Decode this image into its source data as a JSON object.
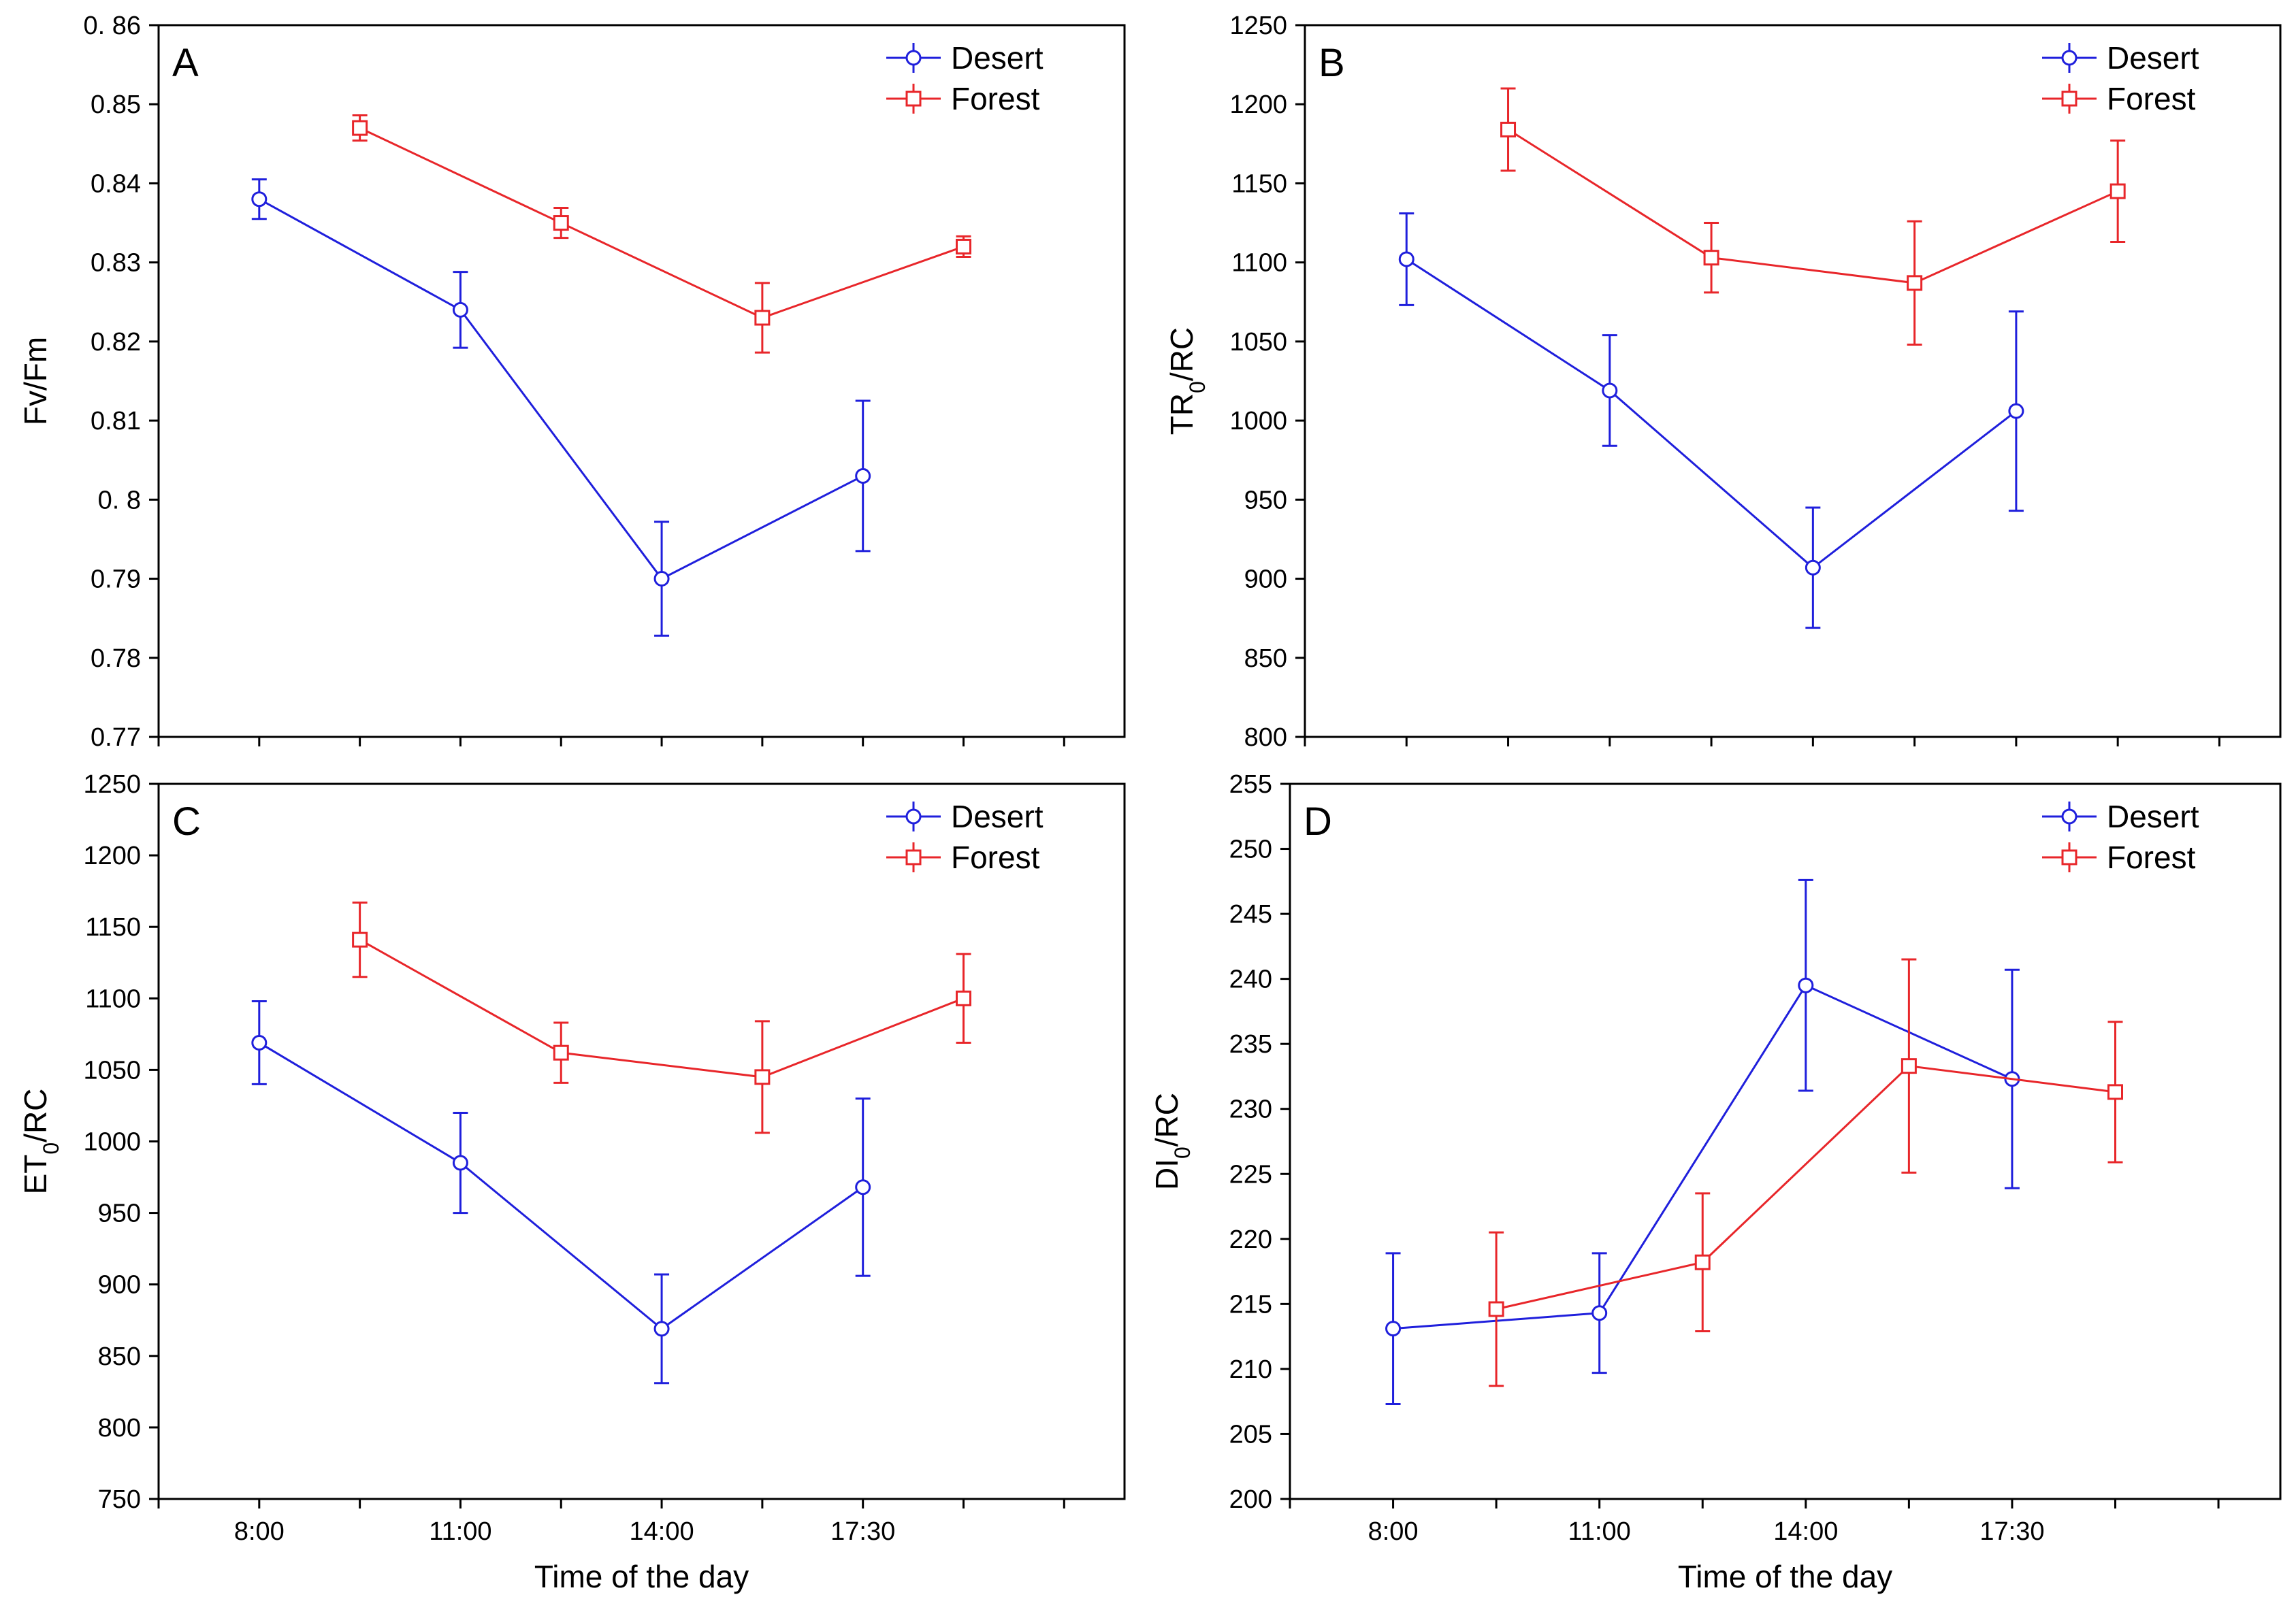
{
  "figure": {
    "colors": {
      "desert": "#1f1fdc",
      "forest": "#e8262a"
    }
  },
  "chart_data": [
    {
      "type": "line",
      "panel": "A",
      "ylabel": "Fv/Fm",
      "xlabel": "",
      "ylim": [
        0.77,
        0.86
      ],
      "yticks": [
        "0.77",
        "0.78",
        "0.79",
        "0. 8",
        "0.81",
        "0.82",
        "0.83",
        "0.84",
        "0.85",
        "0. 86"
      ],
      "xticks": [
        "",
        "",
        "",
        "",
        "",
        "",
        "",
        "",
        "",
        ""
      ],
      "legend": [
        "Desert",
        "Forest"
      ],
      "series": [
        {
          "name": "Desert",
          "x": [
            1,
            3,
            5,
            7
          ],
          "values": [
            0.838,
            0.824,
            0.79,
            0.803
          ],
          "err": [
            0.0025,
            0.0048,
            0.0072,
            0.0095
          ]
        },
        {
          "name": "Forest",
          "x": [
            2,
            4,
            6,
            8
          ],
          "values": [
            0.847,
            0.835,
            0.823,
            0.832
          ],
          "err": [
            0.0016,
            0.0019,
            0.0044,
            0.0013
          ]
        }
      ]
    },
    {
      "type": "line",
      "panel": "B",
      "ylabel": "TR0/RC",
      "xlabel": "",
      "ylim": [
        800,
        1250
      ],
      "yticks": [
        "800",
        "850",
        "900",
        "950",
        "1000",
        "1050",
        "1100",
        "1150",
        "1200",
        "1250"
      ],
      "xticks": [
        "",
        "",
        "",
        "",
        "",
        "",
        "",
        "",
        "",
        ""
      ],
      "legend": [
        "Desert",
        "Forest"
      ],
      "series": [
        {
          "name": "Desert",
          "x": [
            1,
            3,
            5,
            7
          ],
          "values": [
            1102,
            1019,
            907,
            1006
          ],
          "err": [
            29,
            35,
            38,
            63
          ]
        },
        {
          "name": "Forest",
          "x": [
            2,
            4,
            6,
            8
          ],
          "values": [
            1184,
            1103,
            1087,
            1145
          ],
          "err": [
            26,
            22,
            39,
            32
          ]
        }
      ]
    },
    {
      "type": "line",
      "panel": "C",
      "ylabel": "ET0/RC",
      "xlabel": "Time of the day",
      "ylim": [
        750,
        1250
      ],
      "yticks": [
        "750",
        "800",
        "850",
        "900",
        "950",
        "1000",
        "1050",
        "1100",
        "1150",
        "1200",
        "1250"
      ],
      "xticks": [
        "8:00",
        "11:00",
        "14:00",
        "17:30"
      ],
      "legend": [
        "Desert",
        "Forest"
      ],
      "series": [
        {
          "name": "Desert",
          "x": [
            1,
            3,
            5,
            7
          ],
          "values": [
            1069,
            985,
            869,
            968
          ],
          "err": [
            29,
            35,
            38,
            62
          ]
        },
        {
          "name": "Forest",
          "x": [
            2,
            4,
            6,
            8
          ],
          "values": [
            1141,
            1062,
            1045,
            1100
          ],
          "err": [
            26,
            21,
            39,
            31
          ]
        }
      ]
    },
    {
      "type": "line",
      "panel": "D",
      "ylabel": "DI0/RC",
      "xlabel": "Time of the day",
      "ylim": [
        200,
        255
      ],
      "yticks": [
        "200",
        "205",
        "210",
        "215",
        "220",
        "225",
        "230",
        "235",
        "240",
        "245",
        "250",
        "255"
      ],
      "xticks": [
        "8:00",
        "11:00",
        "14:00",
        "17:30"
      ],
      "legend": [
        "Desert",
        "Forest"
      ],
      "series": [
        {
          "name": "Desert",
          "x": [
            1,
            3,
            5,
            7
          ],
          "values": [
            213.1,
            214.3,
            239.5,
            232.3
          ],
          "err": [
            5.8,
            4.6,
            8.1,
            8.4
          ]
        },
        {
          "name": "Forest",
          "x": [
            2,
            4,
            6,
            8
          ],
          "values": [
            214.6,
            218.2,
            233.3,
            231.3
          ],
          "err": [
            5.9,
            5.3,
            8.2,
            5.4
          ]
        }
      ]
    }
  ]
}
